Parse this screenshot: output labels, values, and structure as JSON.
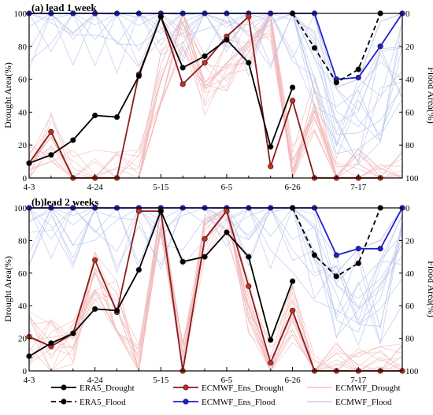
{
  "figure": {
    "legend": {
      "entries": [
        {
          "key": "era5_drought",
          "label": "ERA5_Drought",
          "color": "#000000",
          "dash": "solid",
          "marker": "#000000"
        },
        {
          "key": "era5_flood",
          "label": "ERA5_Flood",
          "color": "#000000",
          "dash": "dash",
          "marker": "#000000"
        },
        {
          "key": "ecmwf_ens_drought",
          "label": "ECMWF_Ens_Drought",
          "color": "#8b1a1a",
          "dash": "solid",
          "marker": "#cc2a1a"
        },
        {
          "key": "ecmwf_ens_flood",
          "label": "ECMWF_Ens_Flood",
          "color": "#1f1fd1",
          "dash": "solid",
          "marker": "#1f1fd1"
        },
        {
          "key": "ecmwf_drought",
          "label": "ECMWF_Drought",
          "color": "#f2b8b8",
          "dash": "solid",
          "marker": null
        },
        {
          "key": "ecmwf_flood",
          "label": "ECMWF_Flood",
          "color": "#b8c4ec",
          "dash": "solid",
          "marker": null
        }
      ]
    }
  },
  "chart_data": [
    {
      "type": "line",
      "title": "(a) lead 1 week",
      "ylabel_left": "Drought Area(%)",
      "ylabel_right": "Flood Area(%)",
      "ylim_left": [
        0,
        100
      ],
      "ylim_right_inverted": [
        0,
        100
      ],
      "yticks_left": [
        "0",
        "20",
        "40",
        "60",
        "80",
        "100"
      ],
      "yticks_right": [
        "100",
        "80",
        "60",
        "40",
        "20",
        "0"
      ],
      "x_tick_labels": [
        "4-3",
        "4-24",
        "5-15",
        "6-5",
        "6-26",
        "7-17"
      ],
      "x_tick_index": [
        0,
        3,
        6,
        9,
        12,
        15
      ],
      "n_points": 18,
      "series": [
        {
          "key": "ecmwf_drought",
          "values": [
            7,
            25,
            0,
            0,
            0,
            0,
            60,
            95,
            55,
            70,
            83,
            96,
            5,
            45,
            0,
            0,
            0,
            0
          ]
        },
        {
          "key": "era5_drought",
          "values": [
            9,
            14,
            23,
            38,
            37,
            62,
            98,
            67,
            74,
            84,
            70,
            19,
            55,
            null,
            null,
            null,
            null,
            null
          ]
        },
        {
          "key": "ecmwf_ens_drought",
          "values": [
            9,
            28,
            0,
            0,
            0,
            63,
            98,
            57,
            70,
            86,
            98,
            7,
            47,
            0,
            0,
            0,
            0,
            null
          ]
        },
        {
          "key": "ecmwf_flood",
          "values": [
            null,
            null,
            null,
            null,
            null,
            null,
            null,
            null,
            null,
            null,
            null,
            null,
            null,
            2,
            45,
            40,
            5,
            0
          ]
        },
        {
          "key": "era5_flood",
          "values": [
            null,
            null,
            null,
            null,
            null,
            null,
            null,
            null,
            null,
            null,
            null,
            null,
            0,
            21,
            42,
            34,
            0,
            null
          ]
        },
        {
          "key": "ecmwf_ens_flood",
          "values": [
            0,
            0,
            0,
            0,
            0,
            0,
            0,
            0,
            0,
            0,
            0,
            0,
            0,
            0,
            40,
            39,
            20,
            0
          ]
        }
      ]
    },
    {
      "type": "line",
      "title": "(b)lead 2 weeks",
      "ylabel_left": "Drought Area(%)",
      "ylabel_right": "Flood Area(%)",
      "ylim_left": [
        0,
        100
      ],
      "ylim_right_inverted": [
        0,
        100
      ],
      "yticks_left": [
        "0",
        "20",
        "40",
        "60",
        "80",
        "100"
      ],
      "yticks_right": [
        "100",
        "80",
        "60",
        "40",
        "20",
        "0"
      ],
      "x_tick_labels": [
        "4-3",
        "4-24",
        "5-15",
        "6-5",
        "6-26",
        "7-17"
      ],
      "x_tick_index": [
        0,
        3,
        6,
        9,
        12,
        15
      ],
      "n_points": 18,
      "series": [
        {
          "key": "ecmwf_drought",
          "values": [
            20,
            15,
            22,
            60,
            38,
            0,
            99,
            0,
            80,
            98,
            40,
            5,
            35,
            0,
            0,
            0,
            0,
            0
          ]
        },
        {
          "key": "era5_drought",
          "values": [
            9,
            17,
            23,
            38,
            37,
            62,
            98,
            67,
            70,
            85,
            70,
            19,
            55,
            null,
            null,
            null,
            null,
            null
          ]
        },
        {
          "key": "ecmwf_ens_drought",
          "values": [
            21,
            15,
            23,
            68,
            36,
            98,
            98,
            0,
            81,
            98,
            52,
            5,
            37,
            0,
            0,
            0,
            0,
            0
          ]
        },
        {
          "key": "ecmwf_flood",
          "values": [
            null,
            null,
            null,
            null,
            null,
            null,
            null,
            null,
            null,
            null,
            null,
            null,
            null,
            30,
            40,
            25,
            20,
            0
          ]
        },
        {
          "key": "era5_flood",
          "values": [
            null,
            null,
            null,
            null,
            null,
            null,
            null,
            null,
            null,
            null,
            null,
            null,
            0,
            29,
            42,
            34,
            0,
            null
          ]
        },
        {
          "key": "ecmwf_ens_flood",
          "values": [
            0,
            0,
            0,
            0,
            0,
            0,
            0,
            0,
            0,
            0,
            0,
            0,
            0,
            0,
            29,
            25,
            25,
            0
          ]
        }
      ]
    }
  ]
}
